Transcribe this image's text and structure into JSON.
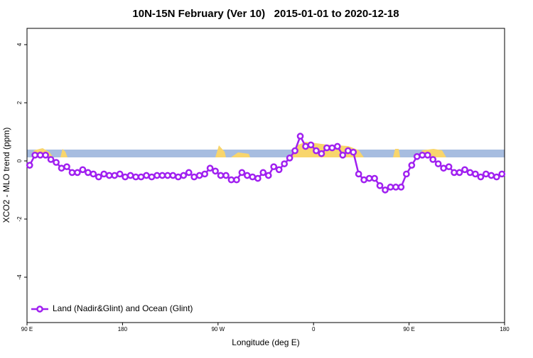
{
  "chart_data": {
    "type": "line",
    "title": "10N-15N February (Ver 10)   2015-01-01 to 2020-12-18",
    "x_label": "Longitude (deg E)",
    "y_label": "XCO2 - MLO trend (ppm)",
    "x": [
      92.5,
      97.5,
      102.5,
      107.5,
      112.5,
      117.5,
      122.5,
      127.5,
      132.5,
      137.5,
      142.5,
      147.5,
      152.5,
      157.5,
      162.5,
      167.5,
      172.5,
      177.5,
      182.5,
      187.5,
      192.5,
      197.5,
      202.5,
      207.5,
      212.5,
      217.5,
      222.5,
      227.5,
      232.5,
      237.5,
      242.5,
      247.5,
      252.5,
      257.5,
      262.5,
      267.5,
      272.5,
      277.5,
      282.5,
      287.5,
      292.5,
      297.5,
      302.5,
      307.5,
      312.5,
      317.5,
      322.5,
      327.5,
      332.5,
      337.5,
      342.5,
      347.5,
      352.5,
      357.5,
      362.5,
      367.5,
      372.5,
      377.5,
      382.5,
      387.5,
      392.5,
      397.5,
      402.5,
      407.5,
      412.5,
      417.5,
      422.5,
      427.5,
      432.5,
      437.5,
      442.5,
      447.5,
      452.5,
      457.5,
      462.5,
      467.5,
      472.5,
      477.5,
      482.5,
      487.5,
      492.5,
      497.5,
      502.5,
      507.5,
      512.5,
      517.5,
      522.5,
      527.5,
      532.5,
      537.5
    ],
    "series": [
      {
        "name": "Land (Nadir&Glint) and Ocean (Glint)",
        "color": "#a020f0",
        "values": [
          -0.15,
          0.2,
          0.2,
          0.2,
          0.05,
          -0.05,
          -0.25,
          -0.2,
          -0.4,
          -0.4,
          -0.3,
          -0.4,
          -0.45,
          -0.55,
          -0.45,
          -0.5,
          -0.5,
          -0.45,
          -0.55,
          -0.5,
          -0.55,
          -0.55,
          -0.5,
          -0.55,
          -0.5,
          -0.5,
          -0.5,
          -0.5,
          -0.55,
          -0.5,
          -0.4,
          -0.55,
          -0.5,
          -0.45,
          -0.25,
          -0.35,
          -0.5,
          -0.5,
          -0.65,
          -0.65,
          -0.4,
          -0.5,
          -0.55,
          -0.6,
          -0.4,
          -0.5,
          -0.2,
          -0.3,
          -0.1,
          0.1,
          0.35,
          0.85,
          0.5,
          0.55,
          0.35,
          0.25,
          0.45,
          0.45,
          0.5,
          0.2,
          0.35,
          0.3,
          -0.45,
          -0.65,
          -0.6,
          -0.6,
          -0.85,
          -1.0,
          -0.9,
          -0.9,
          -0.9,
          -0.45,
          -0.15,
          0.15,
          0.2,
          0.2,
          0.05,
          -0.1,
          -0.25,
          -0.2,
          -0.4,
          -0.4,
          -0.3,
          -0.4,
          -0.45,
          -0.55,
          -0.45,
          -0.5,
          -0.55,
          -0.45
        ]
      }
    ],
    "xlim": [
      90,
      540
    ],
    "xticks": [
      {
        "value": 90,
        "label": "90 E"
      },
      180,
      {
        "value": 270,
        "label": "90 W"
      },
      {
        "value": 360,
        "label": "0"
      },
      {
        "value": 450,
        "label": "90 E"
      },
      {
        "value": 540,
        "label": "180"
      }
    ],
    "ylim": [
      -5.56,
      4.56
    ],
    "yticks": [
      -4,
      -2,
      0,
      2,
      4
    ],
    "legend": "bottom-left"
  }
}
